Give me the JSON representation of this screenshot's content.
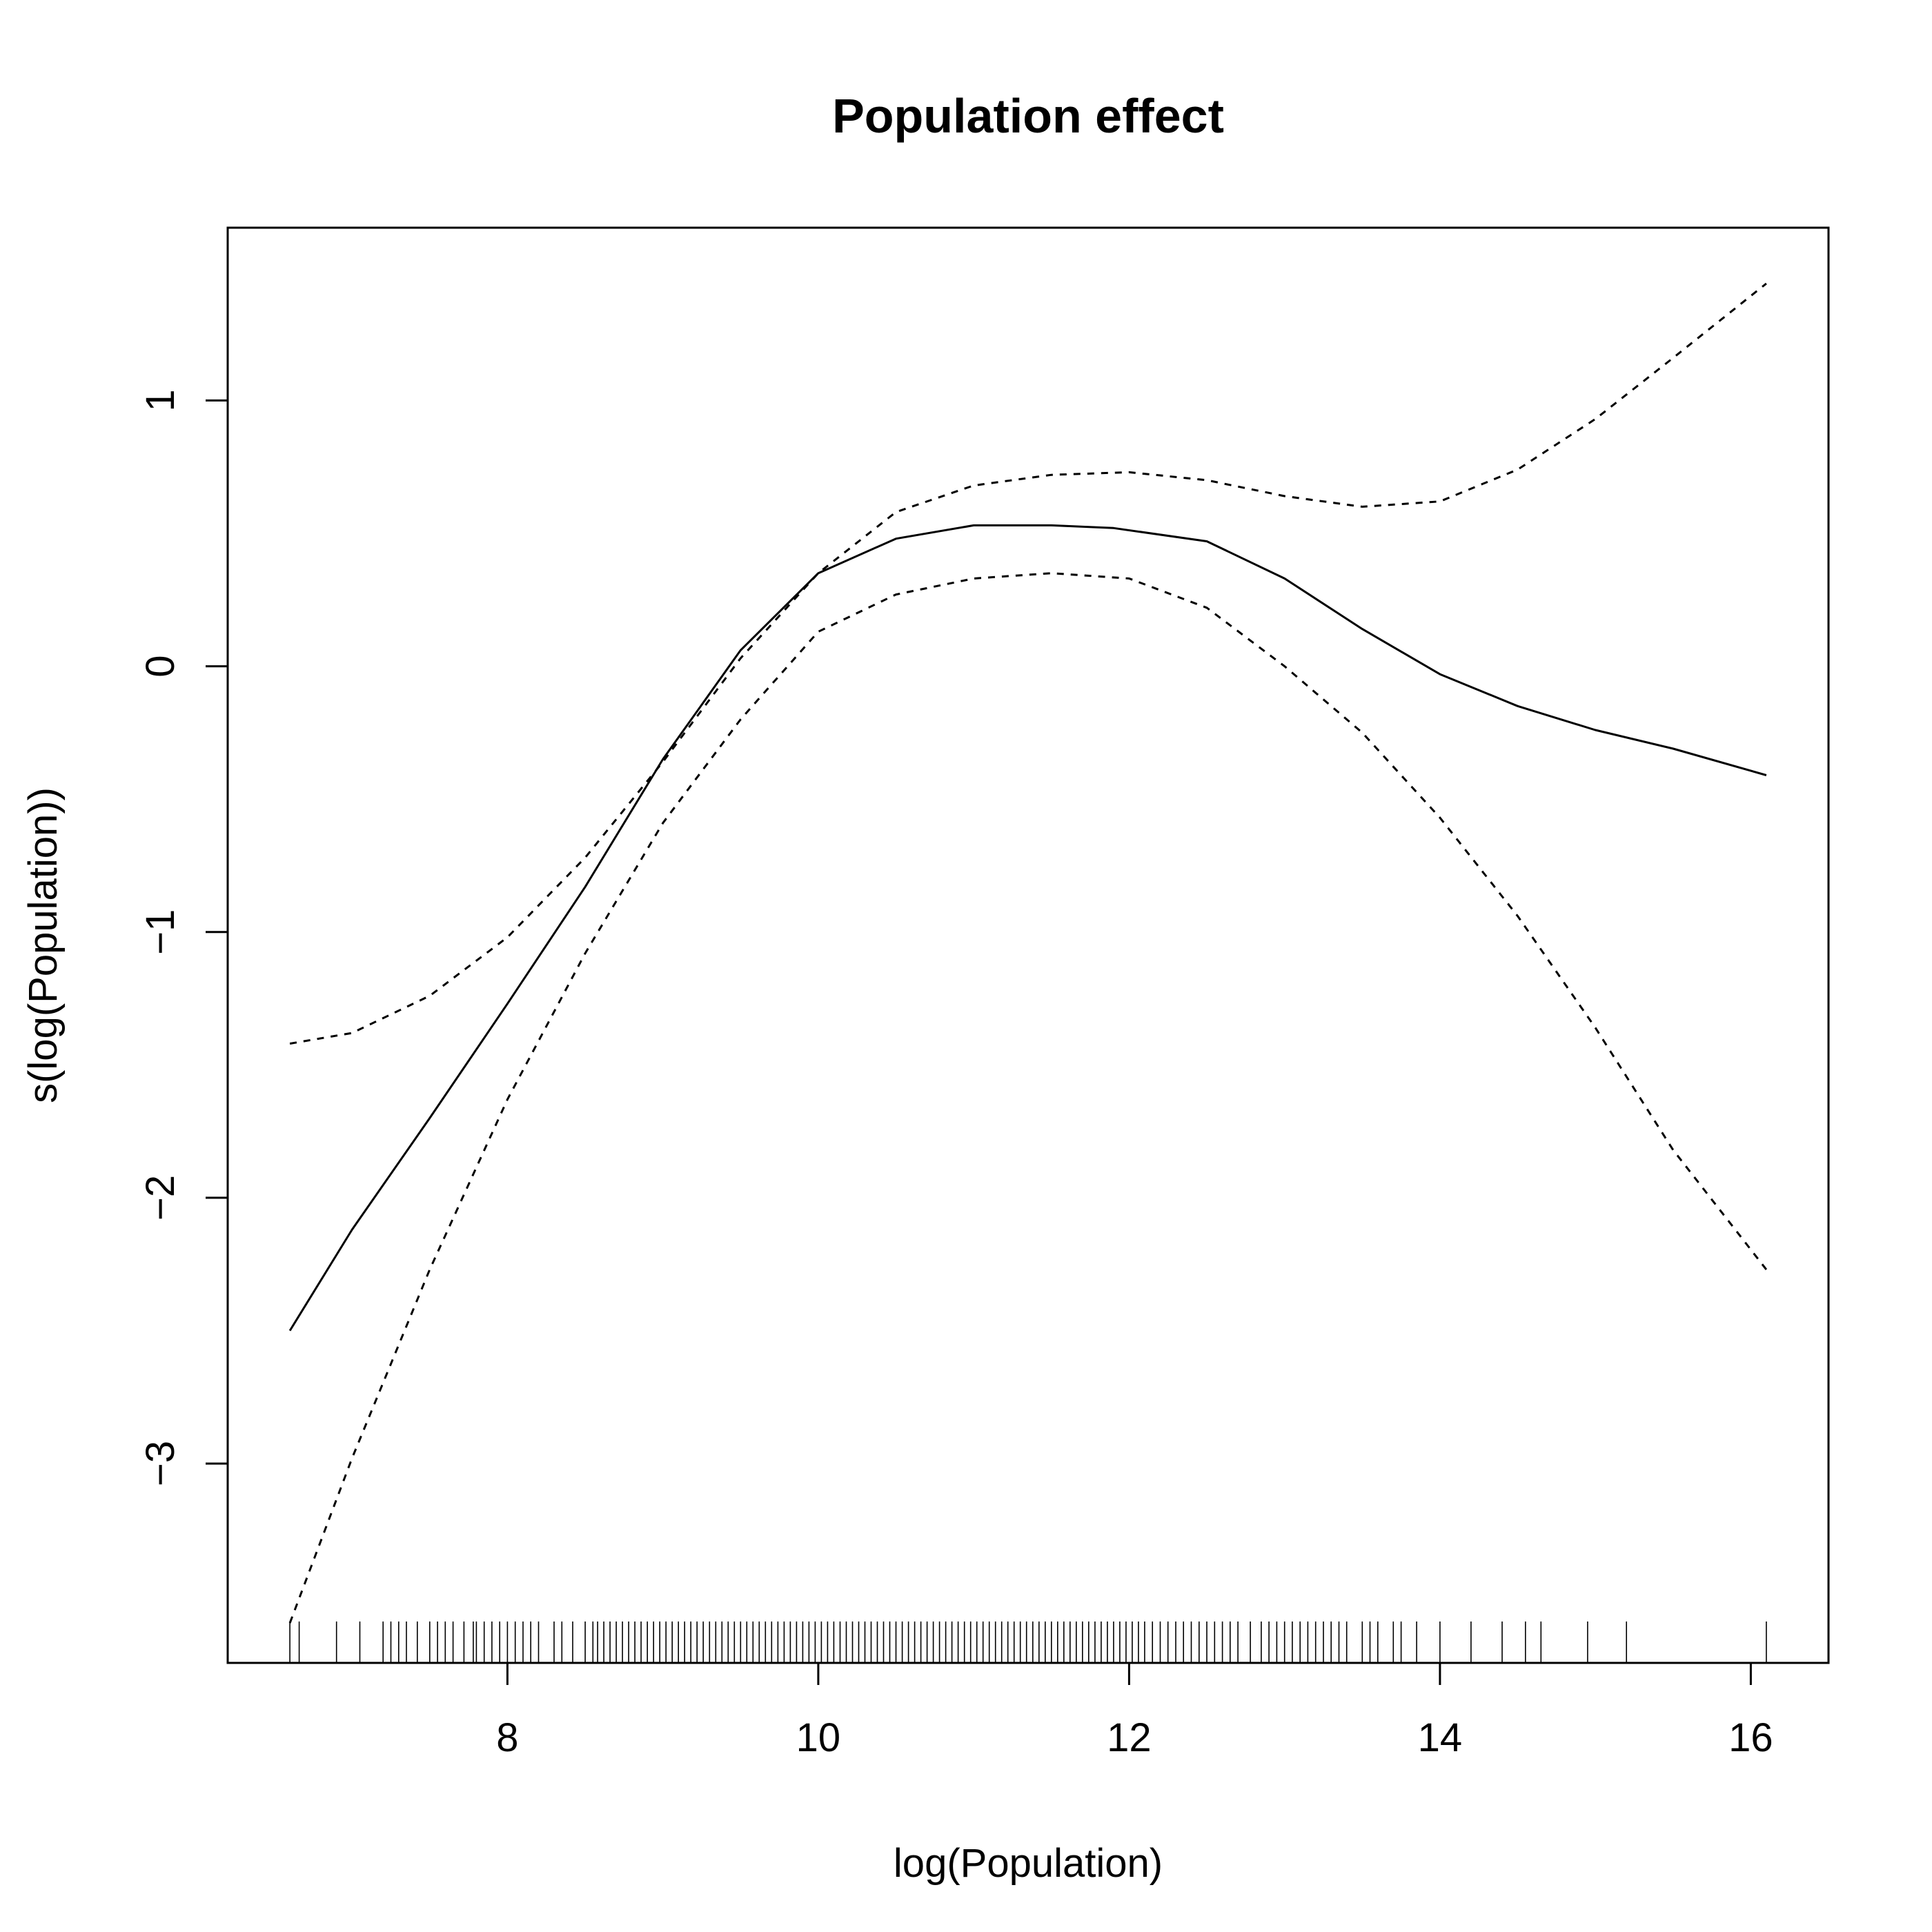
{
  "chart_data": {
    "type": "line",
    "title": "Population effect",
    "xlabel": "log(Population)",
    "ylabel": "s(log(Population))",
    "xlim": [
      6.2,
      16.5
    ],
    "ylim": [
      -3.75,
      1.65
    ],
    "x_ticks": [
      8,
      10,
      12,
      14,
      16
    ],
    "y_ticks": [
      -3,
      -2,
      -1,
      0,
      1
    ],
    "grid": false,
    "legend": "none",
    "series": [
      {
        "style": "solid",
        "x": [
          6.6,
          7.0,
          7.5,
          8.0,
          8.5,
          9.0,
          9.5,
          10.0,
          10.5,
          11.0,
          11.5,
          11.9,
          12.5,
          13.0,
          13.5,
          14.0,
          14.5,
          15.0,
          15.5,
          16.1
        ],
        "y": [
          -2.5,
          -2.12,
          -1.7,
          -1.27,
          -0.83,
          -0.35,
          0.06,
          0.35,
          0.48,
          0.53,
          0.53,
          0.52,
          0.47,
          0.33,
          0.14,
          -0.03,
          -0.15,
          -0.24,
          -0.31,
          -0.41
        ]
      },
      {
        "style": "dashed",
        "x": [
          6.6,
          7.0,
          7.5,
          8.0,
          8.5,
          9.0,
          9.5,
          10.0,
          10.5,
          11.0,
          11.5,
          12.0,
          12.5,
          13.0,
          13.5,
          14.0,
          14.5,
          15.0,
          15.5,
          16.1
        ],
        "y": [
          -1.42,
          -1.38,
          -1.24,
          -1.02,
          -0.72,
          -0.36,
          0.03,
          0.35,
          0.58,
          0.68,
          0.72,
          0.73,
          0.7,
          0.64,
          0.6,
          0.62,
          0.74,
          0.93,
          1.16,
          1.44
        ]
      },
      {
        "style": "dashed",
        "x": [
          6.6,
          7.0,
          7.5,
          8.0,
          8.5,
          9.0,
          9.5,
          10.0,
          10.5,
          11.0,
          11.5,
          12.0,
          12.5,
          13.0,
          13.5,
          14.0,
          14.5,
          15.0,
          15.5,
          16.1
        ],
        "y": [
          -3.6,
          -2.98,
          -2.27,
          -1.63,
          -1.08,
          -0.59,
          -0.2,
          0.13,
          0.27,
          0.33,
          0.35,
          0.33,
          0.22,
          0.0,
          -0.25,
          -0.57,
          -0.94,
          -1.36,
          -1.82,
          -2.27
        ]
      }
    ],
    "rug": [
      6.6,
      6.66,
      6.9,
      7.05,
      7.2,
      7.25,
      7.3,
      7.35,
      7.42,
      7.5,
      7.55,
      7.6,
      7.65,
      7.72,
      7.78,
      7.8,
      7.85,
      7.9,
      7.95,
      8.0,
      8.05,
      8.1,
      8.15,
      8.2,
      8.3,
      8.35,
      8.42,
      8.5,
      8.55,
      8.58,
      8.62,
      8.66,
      8.7,
      8.74,
      8.78,
      8.82,
      8.86,
      8.9,
      8.94,
      8.98,
      9.02,
      9.06,
      9.1,
      9.14,
      9.18,
      9.22,
      9.26,
      9.3,
      9.34,
      9.38,
      9.42,
      9.46,
      9.5,
      9.54,
      9.58,
      9.62,
      9.66,
      9.7,
      9.74,
      9.78,
      9.82,
      9.86,
      9.9,
      9.94,
      9.98,
      10.02,
      10.06,
      10.1,
      10.14,
      10.18,
      10.22,
      10.26,
      10.3,
      10.34,
      10.38,
      10.42,
      10.46,
      10.5,
      10.54,
      10.58,
      10.62,
      10.66,
      10.7,
      10.74,
      10.78,
      10.82,
      10.86,
      10.9,
      10.94,
      10.98,
      11.02,
      11.06,
      11.1,
      11.14,
      11.18,
      11.22,
      11.26,
      11.3,
      11.34,
      11.38,
      11.42,
      11.46,
      11.5,
      11.54,
      11.58,
      11.62,
      11.66,
      11.7,
      11.74,
      11.78,
      11.82,
      11.86,
      11.9,
      11.94,
      11.98,
      12.02,
      12.06,
      12.1,
      12.15,
      12.2,
      12.25,
      12.3,
      12.35,
      12.4,
      12.45,
      12.5,
      12.55,
      12.6,
      12.65,
      12.7,
      12.78,
      12.85,
      12.9,
      12.95,
      13.0,
      13.05,
      13.1,
      13.15,
      13.2,
      13.25,
      13.3,
      13.35,
      13.4,
      13.5,
      13.55,
      13.6,
      13.7,
      13.75,
      13.85,
      14.0,
      14.2,
      14.4,
      14.55,
      14.65,
      14.95,
      15.2,
      16.1
    ]
  }
}
